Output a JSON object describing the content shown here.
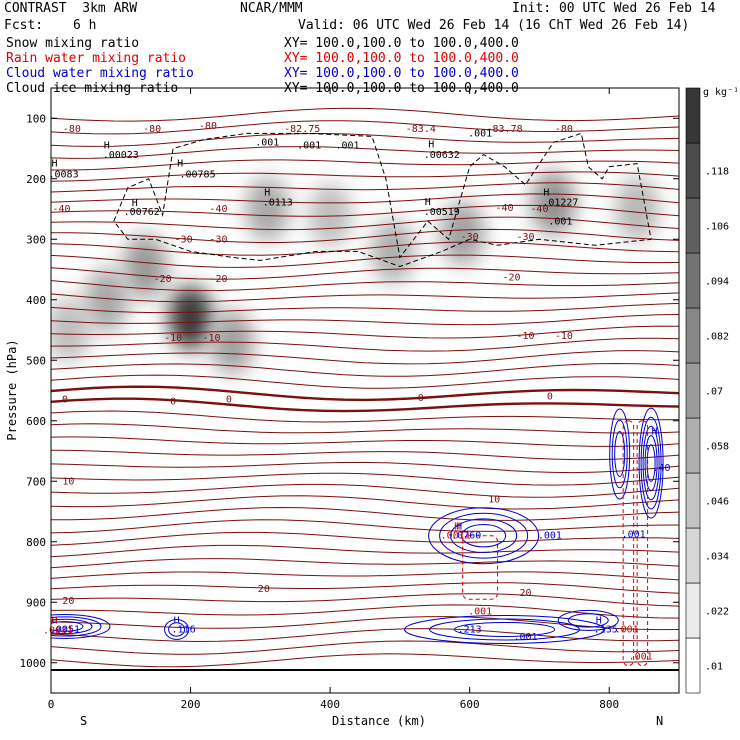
{
  "header": {
    "title": "CONTRAST  3km ARW",
    "org": "NCAR/MMM",
    "init": "Init: 00 UTC Wed 26 Feb 14",
    "fcst_label": "Fcst:",
    "fcst_value": "6 h",
    "valid": "Valid: 06 UTC Wed 26 Feb 14 (16 ChT Wed 26 Feb 14)",
    "fields": [
      {
        "name": "Snow mixing ratio",
        "xy": "XY= 100.0,100.0 to 100.0,400.0",
        "color": "#000000"
      },
      {
        "name": "Rain water mixing ratio",
        "xy": "XY= 100.0,100.0 to 100.0,400.0",
        "color": "#e00000"
      },
      {
        "name": "Cloud water mixing ratio",
        "xy": "XY= 100.0,100.0 to 100.0,400.0",
        "color": "#0000cc"
      },
      {
        "name": "Cloud ice mixing ratio",
        "xy": "XY= 100.0,100.0 to 100.0,400.0",
        "color": "#000000"
      }
    ]
  },
  "chart_data": {
    "type": "heatmap",
    "xlabel": "Distance (km)",
    "ylabel": "Pressure (hPa)",
    "xlim": [
      0,
      900
    ],
    "ylim": [
      1050,
      50
    ],
    "x_ticks": [
      0,
      200,
      400,
      600,
      800
    ],
    "y_ticks": [
      100,
      200,
      300,
      400,
      500,
      600,
      700,
      800,
      900,
      1000
    ],
    "x_end_labels": {
      "left": "S",
      "right": "N"
    },
    "colorbar": {
      "unit": "g kg⁻¹",
      "levels": [
        ".01",
        ".022",
        ".034",
        ".046",
        ".058",
        ".07",
        ".082",
        ".094",
        ".106",
        ".118"
      ]
    },
    "temperature_contours": [
      {
        "label": "-80",
        "x": 30,
        "p": 118
      },
      {
        "label": "-80",
        "x": 145,
        "p": 118
      },
      {
        "label": "-80",
        "x": 225,
        "p": 113
      },
      {
        "label": "-80",
        "x": 735,
        "p": 118
      },
      {
        "label": "-82.75",
        "x": 360,
        "p": 118
      },
      {
        "label": "-83.4",
        "x": 530,
        "p": 118
      },
      {
        "label": "-83.78",
        "x": 650,
        "p": 118
      },
      {
        "label": "-40",
        "x": 15,
        "p": 250
      },
      {
        "label": "-40",
        "x": 240,
        "p": 250
      },
      {
        "label": "-40",
        "x": 650,
        "p": 248
      },
      {
        "label": "-40",
        "x": 700,
        "p": 250
      },
      {
        "label": "-30",
        "x": 190,
        "p": 300
      },
      {
        "label": "-30",
        "x": 240,
        "p": 300
      },
      {
        "label": "-30",
        "x": 600,
        "p": 296
      },
      {
        "label": "-30",
        "x": 680,
        "p": 296
      },
      {
        "label": "-20",
        "x": 160,
        "p": 366
      },
      {
        "label": "-20",
        "x": 240,
        "p": 366
      },
      {
        "label": "-20",
        "x": 660,
        "p": 363
      },
      {
        "label": "-10",
        "x": 175,
        "p": 463
      },
      {
        "label": "-10",
        "x": 230,
        "p": 463
      },
      {
        "label": "-10",
        "x": 680,
        "p": 460
      },
      {
        "label": "-10",
        "x": 735,
        "p": 460
      },
      {
        "label": "0",
        "x": 20,
        "p": 565
      },
      {
        "label": "0",
        "x": 175,
        "p": 568
      },
      {
        "label": "0",
        "x": 255,
        "p": 565
      },
      {
        "label": "0",
        "x": 530,
        "p": 562
      },
      {
        "label": "0",
        "x": 715,
        "p": 560
      },
      {
        "label": "10",
        "x": 25,
        "p": 700
      },
      {
        "label": "10",
        "x": 635,
        "p": 730
      },
      {
        "label": "20",
        "x": 25,
        "p": 898
      },
      {
        "label": "20",
        "x": 305,
        "p": 878
      },
      {
        "label": "20",
        "x": 680,
        "p": 885
      }
    ],
    "maxima_labels": [
      {
        "text": "H",
        "x": 80,
        "p": 150,
        "color": "black"
      },
      {
        "text": ".00023",
        "x": 100,
        "p": 166,
        "color": "black"
      },
      {
        "text": "H",
        "x": 5,
        "p": 180,
        "color": "black"
      },
      {
        "text": ".0083",
        "x": 18,
        "p": 198,
        "color": "black"
      },
      {
        "text": "H",
        "x": 185,
        "p": 180,
        "color": "black"
      },
      {
        "text": ".00785",
        "x": 210,
        "p": 198,
        "color": "black"
      },
      {
        "text": "H",
        "x": 120,
        "p": 245,
        "color": "black"
      },
      {
        "text": ".00762",
        "x": 130,
        "p": 260,
        "color": "black"
      },
      {
        "text": "H",
        "x": 310,
        "p": 228,
        "color": "black"
      },
      {
        "text": ".0113",
        "x": 325,
        "p": 244,
        "color": "black"
      },
      {
        "text": "H",
        "x": 545,
        "p": 148,
        "color": "black"
      },
      {
        "text": ".00632",
        "x": 560,
        "p": 166,
        "color": "black"
      },
      {
        "text": "H",
        "x": 540,
        "p": 243,
        "color": "black"
      },
      {
        "text": ".00519",
        "x": 560,
        "p": 260,
        "color": "black"
      },
      {
        "text": "H",
        "x": 710,
        "p": 228,
        "color": "black"
      },
      {
        "text": ".01227",
        "x": 730,
        "p": 244,
        "color": "black"
      },
      {
        "text": ".001",
        "x": 310,
        "p": 145,
        "color": "black"
      },
      {
        "text": ".001",
        "x": 370,
        "p": 150,
        "color": "black"
      },
      {
        "text": ".001",
        "x": 425,
        "p": 150,
        "color": "black"
      },
      {
        "text": ".001",
        "x": 615,
        "p": 130,
        "color": "black"
      },
      {
        "text": ".001",
        "x": 730,
        "p": 276,
        "color": "black"
      },
      {
        "text": "H",
        "x": 5,
        "p": 935,
        "color": "blue"
      },
      {
        "text": ".0051",
        "x": 20,
        "p": 950,
        "color": "blue"
      },
      {
        "text": "H",
        "x": 180,
        "p": 935,
        "color": "blue"
      },
      {
        "text": ".116",
        "x": 190,
        "p": 950,
        "color": "blue"
      },
      {
        "text": ".213",
        "x": 600,
        "p": 950,
        "color": "blue"
      },
      {
        "text": "H",
        "x": 785,
        "p": 935,
        "color": "blue"
      },
      {
        "text": ".135",
        "x": 795,
        "p": 950,
        "color": "blue"
      },
      {
        "text": ".001",
        "x": 680,
        "p": 962,
        "color": "blue"
      },
      {
        "text": ".001",
        "x": 715,
        "p": 795,
        "color": "blue"
      },
      {
        "text": "H",
        "x": 585,
        "p": 780,
        "color": "blue"
      },
      {
        "text": ".0760",
        "x": 595,
        "p": 795,
        "color": "blue"
      },
      {
        "text": ".001",
        "x": 835,
        "p": 793,
        "color": "blue"
      },
      {
        "text": ".40",
        "x": 875,
        "p": 683,
        "color": "blue"
      },
      {
        "text": "H",
        "x": 865,
        "p": 623,
        "color": "blue"
      },
      {
        "text": "H",
        "x": 582,
        "p": 780,
        "color": "red"
      },
      {
        "text": ".0011",
        "x": 580,
        "p": 795,
        "color": "red"
      },
      {
        "text": ".001",
        "x": 615,
        "p": 920,
        "color": "red"
      },
      {
        "text": ".001",
        "x": 825,
        "p": 950,
        "color": "red"
      },
      {
        "text": ".001",
        "x": 845,
        "p": 995,
        "color": "red"
      },
      {
        "text": "H",
        "x": 5,
        "p": 935,
        "color": "red"
      },
      {
        "text": ".0031",
        "x": 10,
        "p": 952,
        "color": "red"
      }
    ],
    "snow_blobs": [
      {
        "x": 135,
        "p": 345,
        "intensity": 0.055
      },
      {
        "x": 200,
        "p": 430,
        "intensity": 0.12
      },
      {
        "x": 260,
        "p": 470,
        "intensity": 0.05
      },
      {
        "x": 25,
        "p": 450,
        "intensity": 0.03
      },
      {
        "x": 80,
        "p": 400,
        "intensity": 0.045
      },
      {
        "x": 490,
        "p": 320,
        "intensity": 0.04
      },
      {
        "x": 590,
        "p": 290,
        "intensity": 0.05
      },
      {
        "x": 720,
        "p": 240,
        "intensity": 0.06
      },
      {
        "x": 310,
        "p": 250,
        "intensity": 0.045
      },
      {
        "x": 400,
        "p": 260,
        "intensity": 0.03
      },
      {
        "x": 840,
        "p": 250,
        "intensity": 0.035
      }
    ]
  }
}
